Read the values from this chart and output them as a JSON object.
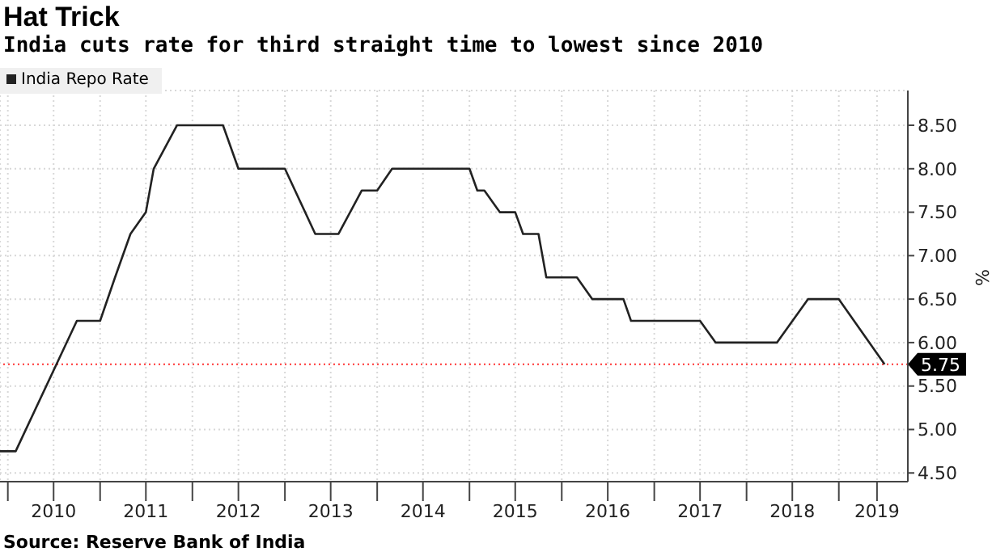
{
  "chart_data": {
    "type": "line",
    "title": "Hat Trick",
    "subtitle": "India cuts rate for third straight time to lowest since 2010",
    "ylabel": "%",
    "x": [
      "2009-12",
      "2010-02",
      "2010-10",
      "2011-01",
      "2011-03",
      "2011-05",
      "2011-07",
      "2011-08",
      "2011-11",
      "2012-05",
      "2012-07",
      "2013-01",
      "2013-05",
      "2013-08",
      "2013-11",
      "2014-01",
      "2014-03",
      "2015-01",
      "2015-02",
      "2015-03",
      "2015-05",
      "2015-07",
      "2015-08",
      "2015-10",
      "2015-11",
      "2016-03",
      "2016-05",
      "2016-09",
      "2016-10",
      "2017-07",
      "2017-09",
      "2018-05",
      "2018-09",
      "2019-01",
      "2019-07"
    ],
    "series": [
      {
        "name": "India Repo Rate",
        "color": "#222222",
        "values": [
          4.75,
          4.75,
          6.25,
          6.25,
          6.75,
          7.25,
          7.5,
          8.0,
          8.5,
          8.5,
          8.0,
          8.0,
          7.25,
          7.25,
          7.75,
          7.75,
          8.0,
          8.0,
          7.75,
          7.75,
          7.5,
          7.5,
          7.25,
          7.25,
          6.75,
          6.75,
          6.5,
          6.5,
          6.25,
          6.25,
          6.0,
          6.0,
          6.5,
          6.5,
          5.75
        ]
      }
    ],
    "xlim": [
      "2009-12",
      "2019-10"
    ],
    "xticks": [
      {
        "value": "2010-01",
        "label": null
      },
      {
        "value": "2010-07",
        "label": "2010"
      },
      {
        "value": "2011-01",
        "label": null
      },
      {
        "value": "2011-07",
        "label": "2011"
      },
      {
        "value": "2012-01",
        "label": null
      },
      {
        "value": "2012-07",
        "label": "2012"
      },
      {
        "value": "2013-01",
        "label": null
      },
      {
        "value": "2013-07",
        "label": "2013"
      },
      {
        "value": "2014-01",
        "label": null
      },
      {
        "value": "2014-07",
        "label": "2014"
      },
      {
        "value": "2015-01",
        "label": null
      },
      {
        "value": "2015-07",
        "label": "2015"
      },
      {
        "value": "2016-01",
        "label": null
      },
      {
        "value": "2016-07",
        "label": "2016"
      },
      {
        "value": "2017-01",
        "label": null
      },
      {
        "value": "2017-07",
        "label": "2017"
      },
      {
        "value": "2018-01",
        "label": null
      },
      {
        "value": "2018-07",
        "label": "2018"
      },
      {
        "value": "2019-01",
        "label": null
      },
      {
        "value": "2019-06",
        "label": "2019"
      }
    ],
    "ylim": [
      4.4,
      8.9
    ],
    "yticks": [
      {
        "value": 4.5,
        "label": "4.50"
      },
      {
        "value": 5.0,
        "label": "5.00"
      },
      {
        "value": 5.5,
        "label": "5.50"
      },
      {
        "value": 6.0,
        "label": "6.00"
      },
      {
        "value": 6.5,
        "label": "6.50"
      },
      {
        "value": 7.0,
        "label": "7.00"
      },
      {
        "value": 7.5,
        "label": "7.50"
      },
      {
        "value": 8.0,
        "label": "8.00"
      },
      {
        "value": 8.5,
        "label": "8.50"
      }
    ],
    "ref_lines": [
      {
        "axis": "y",
        "value": 5.75,
        "label": "5.75",
        "color": "#ff3333",
        "line_style": "dotted"
      }
    ],
    "grid": true,
    "legend": "top left",
    "marker": "none",
    "line_style": "solid",
    "annotations": [
      "Source: Reserve Bank of India"
    ]
  }
}
